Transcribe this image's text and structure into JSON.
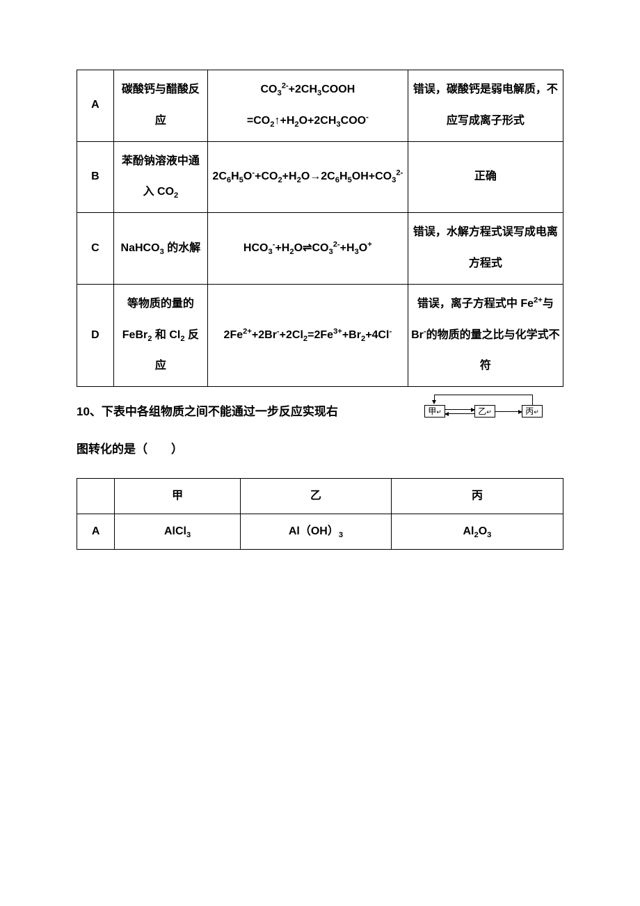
{
  "table1": {
    "border_color": "#000000",
    "col_labels": [
      "A",
      "B",
      "C",
      "D"
    ],
    "rows": [
      {
        "label": "A",
        "desc_html": "碳酸钙与醋酸反应",
        "eq_html": "CO<sub>3</sub><sup>2-</sup>+2CH<sub>3</sub>COOH =CO<sub>2</sub>↑+H<sub>2</sub>O+2CH<sub>3</sub>COO<sup>-</sup>",
        "judge_html": "错误，碳酸钙是弱电解质，不应写成离子形式"
      },
      {
        "label": "B",
        "desc_html": "苯酚钠溶液中通入 CO<sub>2</sub>",
        "eq_html": "2C<sub>6</sub>H<sub>5</sub>O<sup>-</sup>+CO<sub>2</sub>+H<sub>2</sub>O→2C<sub>6</sub>H<sub>5</sub>OH+CO<sub>3</sub><sup>2-</sup>",
        "judge_html": "正确"
      },
      {
        "label": "C",
        "desc_html": "NaHCO<sub>3</sub> 的水解",
        "eq_html": "HCO<sub>3</sub><sup>-</sup>+H<sub>2</sub>O⇌CO<sub>3</sub><sup>2-</sup>+H<sub>3</sub>O<sup>+</sup>",
        "judge_html": "错误，水解方程式误写成电离方程式"
      },
      {
        "label": "D",
        "desc_html": "等物质的量的 FeBr<sub>2</sub> 和 Cl<sub>2</sub> 反应",
        "eq_html": "2Fe<sup>2+</sup>+2Br<sup>-</sup>+2Cl<sub>2</sub>=2Fe<sup>3+</sup>+Br<sub>2</sub>+4Cl<sup>-</sup>",
        "judge_html": "错误，离子方程式中 Fe<sup>2+</sup>与 Br<sup>-</sup>的物质的量之比与化学式不符"
      }
    ]
  },
  "question10": {
    "line1": "10、下表中各组物质之间不能通过一步反应实现右",
    "line2": "图转化的是（　　）"
  },
  "diagram": {
    "nodes": [
      {
        "id": "jia",
        "label_html": "甲<span class='rt'>↵</span>"
      },
      {
        "id": "yi",
        "label_html": "乙<span class='rt'>↵</span>"
      },
      {
        "id": "bing",
        "label_html": "丙<span class='rt'>↵</span>"
      }
    ],
    "box_border": "#000000",
    "background": "#ffffff"
  },
  "table2": {
    "headers": [
      "",
      "甲",
      "乙",
      "丙"
    ],
    "rows": [
      {
        "label": "A",
        "jia_html": "AlCl<sub>3</sub>",
        "yi_html": "Al（OH）<sub>3</sub>",
        "bing_html": "Al<sub>2</sub>O<sub>3</sub>"
      }
    ]
  },
  "colors": {
    "text": "#000000",
    "background": "#ffffff",
    "border": "#000000"
  },
  "fontsize_body": 16,
  "fontsize_question": 17
}
